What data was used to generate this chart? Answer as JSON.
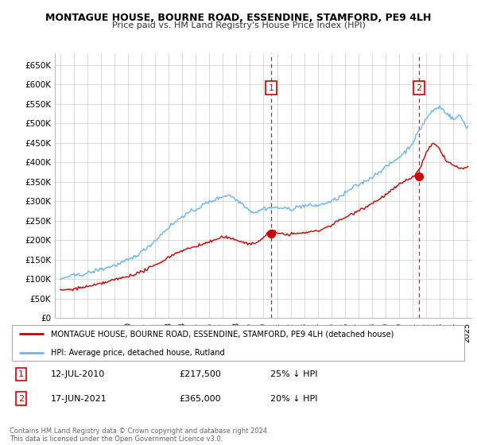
{
  "title": "MONTAGUE HOUSE, BOURNE ROAD, ESSENDINE, STAMFORD, PE9 4LH",
  "subtitle": "Price paid vs. HM Land Registry's House Price Index (HPI)",
  "sale1_date": "12-JUL-2010",
  "sale1_price": 217500,
  "sale1_label": "25% ↓ HPI",
  "sale1_year": 2010.55,
  "sale2_date": "17-JUN-2021",
  "sale2_price": 365000,
  "sale2_label": "20% ↓ HPI",
  "sale2_year": 2021.46,
  "legend_line1": "MONTAGUE HOUSE, BOURNE ROAD, ESSENDINE, STAMFORD, PE9 4LH (detached house)",
  "legend_line2": "HPI: Average price, detached house, Rutland",
  "footer1": "Contains HM Land Registry data © Crown copyright and database right 2024.",
  "footer2": "This data is licensed under the Open Government Licence v3.0.",
  "hpi_color": "#6ab4f5",
  "price_color": "#cc0000",
  "annotation_color": "#cc0000",
  "grid_color": "#cccccc",
  "bg_color": "#ffffff",
  "ylim_min": 0,
  "ylim_max": 680000,
  "xlim_min": 1994.6,
  "xlim_max": 2025.4
}
